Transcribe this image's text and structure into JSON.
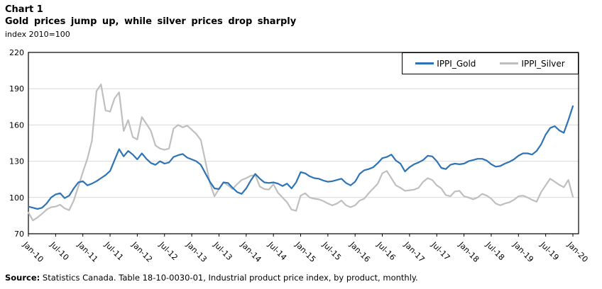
{
  "header": {
    "chart_label": "Chart 1",
    "title": "Gold prices jump up, while silver prices drop sharply",
    "unit_label": "index 2010=100"
  },
  "source": {
    "prefix": "Source:",
    "text": " Statistics Canada. Table 18-10-0030-01, Industrial product price index, by product, monthly."
  },
  "chart_data": {
    "type": "line",
    "x_unit": "monthly, Jan-2010 to Jan-2020",
    "x_tick_labels": [
      "Jan-10",
      "Jul-10",
      "Jan-11",
      "Jul-11",
      "Jan-12",
      "Jul-12",
      "Jan-13",
      "Jul-13",
      "Jan-14",
      "Jul-14",
      "Jan-15",
      "Jul-15",
      "Jan-16",
      "Jul-16",
      "Jan-17",
      "Jul-17",
      "Jan-18",
      "Jul-18",
      "Jan-19",
      "Jul-19",
      "Jan-20"
    ],
    "x_tick_interval_months": 6,
    "ylim": [
      70,
      220
    ],
    "yticks": [
      70,
      100,
      130,
      160,
      190,
      220
    ],
    "grid": true,
    "legend_position": "top-right",
    "colors": {
      "grid": "#D9D9D9",
      "frame": "#000000"
    },
    "series": [
      {
        "name": "IPPI_Gold",
        "color": "#2E74B5",
        "values": [
          92.5,
          91.5,
          90.5,
          91.5,
          95,
          100,
          102.5,
          103.5,
          99.5,
          101.5,
          107.5,
          112.5,
          113.5,
          110,
          111.5,
          113.5,
          116,
          118.5,
          122,
          131,
          140,
          134,
          138.5,
          135.5,
          131.5,
          136.5,
          132,
          128.5,
          127,
          130,
          128,
          129,
          133.5,
          135,
          136,
          133,
          131.5,
          130,
          127,
          120,
          113,
          107.5,
          107,
          112.5,
          112,
          108,
          104.5,
          103,
          107.5,
          114,
          119.5,
          115.5,
          112.5,
          112,
          112.5,
          111.5,
          109.5,
          111.5,
          107.5,
          112.5,
          121,
          120,
          117.5,
          116,
          115.5,
          114,
          113,
          113.5,
          114.5,
          115.5,
          112,
          110,
          113,
          119.5,
          122.5,
          123.5,
          125,
          128.5,
          132.5,
          133.5,
          135.5,
          130.5,
          128,
          121.5,
          125,
          127.5,
          129,
          131,
          134.5,
          134,
          130,
          124.5,
          123.5,
          127,
          128,
          127.5,
          128,
          130,
          131,
          132,
          132,
          130.5,
          127.5,
          125.5,
          126,
          128,
          129.5,
          131.5,
          134.5,
          136.5,
          136.5,
          135.5,
          138.5,
          144,
          152,
          157.5,
          159,
          155.5,
          153.5,
          164,
          175.5
        ]
      },
      {
        "name": "IPPI_Silver",
        "color": "#BFBFBF",
        "values": [
          87.5,
          81,
          83.5,
          86.5,
          90,
          92,
          92.5,
          94,
          91,
          89.5,
          97.5,
          109,
          121,
          132,
          147,
          188,
          193.5,
          172,
          171,
          182,
          187,
          155,
          164,
          150,
          148,
          166.5,
          161,
          155,
          143,
          140.5,
          139.5,
          140.5,
          157,
          160,
          158,
          159.5,
          156,
          152.5,
          147.5,
          130,
          112,
          101,
          107,
          112.5,
          110,
          107,
          111,
          114.5,
          116,
          118,
          118.5,
          109,
          107,
          106.5,
          111,
          104,
          100,
          96,
          90,
          89,
          101.5,
          103.5,
          100,
          99,
          98.5,
          97,
          95,
          93.5,
          95,
          97.5,
          93.5,
          92,
          93.5,
          97.5,
          99,
          103.5,
          107.5,
          111.5,
          120,
          122,
          116,
          110,
          108,
          105.5,
          106,
          106.5,
          108,
          113,
          116,
          114.5,
          110,
          107.5,
          102,
          101,
          105,
          105.5,
          101,
          100,
          98.5,
          100,
          103,
          101.5,
          99,
          95,
          93.5,
          95,
          96,
          98,
          101,
          101.5,
          100,
          98,
          96.5,
          104.5,
          110,
          115.5,
          113,
          110.5,
          108.5,
          114.5,
          100.5
        ]
      }
    ]
  }
}
